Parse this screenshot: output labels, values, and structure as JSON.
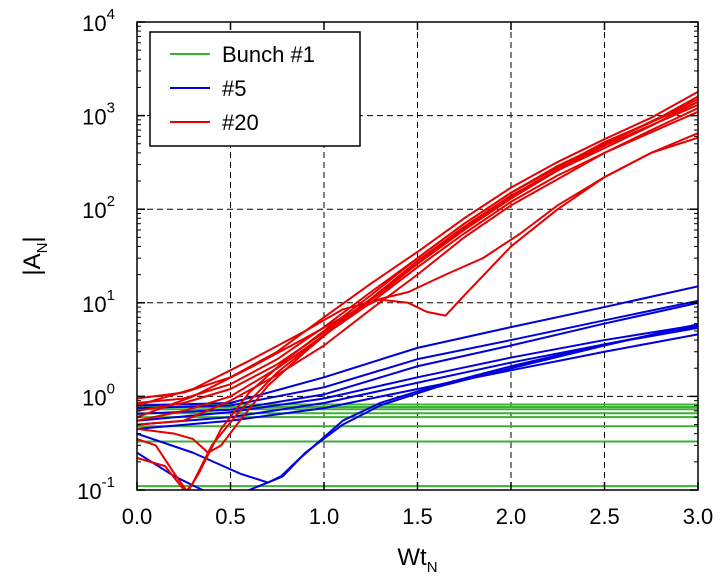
{
  "chart_data": {
    "type": "line",
    "xlabel": {
      "main": "Wt",
      "sub": "N"
    },
    "ylabel": {
      "main": "|A",
      "sub": "N",
      "close": "|"
    },
    "xlim": [
      0.0,
      3.0
    ],
    "ylim": [
      0.1,
      10000
    ],
    "yscale": "log",
    "grid": true,
    "legend_position": "top-left",
    "x_ticks": [
      "0.0",
      "0.5",
      "1.0",
      "1.5",
      "2.0",
      "2.5",
      "3.0"
    ],
    "y_ticks": [
      {
        "base": "10",
        "exp": "-1"
      },
      {
        "base": "10",
        "exp": "0"
      },
      {
        "base": "10",
        "exp": "1"
      },
      {
        "base": "10",
        "exp": "2"
      },
      {
        "base": "10",
        "exp": "3"
      },
      {
        "base": "10",
        "exp": "4"
      }
    ],
    "series": [
      {
        "name": "Bunch #1",
        "color": "#3cb034",
        "lines": [
          [
            [
              0,
              0.82
            ],
            [
              3.0,
              0.82
            ]
          ],
          [
            [
              0,
              0.77
            ],
            [
              3.0,
              0.77
            ]
          ],
          [
            [
              0,
              0.73
            ],
            [
              3.0,
              0.73
            ]
          ],
          [
            [
              0,
              0.66
            ],
            [
              3.0,
              0.66
            ]
          ],
          [
            [
              0,
              0.6
            ],
            [
              3.0,
              0.6
            ]
          ],
          [
            [
              0,
              0.48
            ],
            [
              3.0,
              0.48
            ]
          ],
          [
            [
              0,
              0.33
            ],
            [
              3.0,
              0.33
            ]
          ],
          [
            [
              0,
              0.11
            ],
            [
              3.0,
              0.11
            ]
          ]
        ]
      },
      {
        "name": "#5",
        "color": "#0000dd",
        "lines": [
          [
            [
              0,
              0.8
            ],
            [
              0.5,
              0.85
            ],
            [
              1.0,
              1.6
            ],
            [
              1.5,
              3.3
            ],
            [
              2.0,
              5.5
            ],
            [
              2.5,
              9.0
            ],
            [
              3.0,
              15.0
            ]
          ],
          [
            [
              0,
              0.75
            ],
            [
              0.5,
              0.8
            ],
            [
              1.0,
              1.25
            ],
            [
              1.5,
              2.5
            ],
            [
              2.0,
              4.0
            ],
            [
              2.5,
              6.5
            ],
            [
              3.0,
              10.5
            ]
          ],
          [
            [
              0,
              0.65
            ],
            [
              0.5,
              0.72
            ],
            [
              1.0,
              1.05
            ],
            [
              1.5,
              2.1
            ],
            [
              2.0,
              3.5
            ],
            [
              2.5,
              6.0
            ],
            [
              3.0,
              10.0
            ]
          ],
          [
            [
              0,
              0.55
            ],
            [
              0.5,
              0.68
            ],
            [
              1.0,
              0.95
            ],
            [
              1.5,
              1.6
            ],
            [
              2.0,
              2.6
            ],
            [
              2.5,
              4.0
            ],
            [
              3.0,
              5.8
            ]
          ],
          [
            [
              0,
              0.5
            ],
            [
              0.5,
              0.6
            ],
            [
              1.0,
              0.85
            ],
            [
              1.5,
              1.4
            ],
            [
              2.0,
              2.3
            ],
            [
              2.5,
              3.6
            ],
            [
              3.0,
              5.4
            ]
          ],
          [
            [
              0,
              0.45
            ],
            [
              0.5,
              0.55
            ],
            [
              1.0,
              0.75
            ],
            [
              1.5,
              1.2
            ],
            [
              2.0,
              1.9
            ],
            [
              2.5,
              3.0
            ],
            [
              3.0,
              4.6
            ]
          ],
          [
            [
              0,
              0.4
            ],
            [
              0.3,
              0.25
            ],
            [
              0.55,
              0.15
            ],
            [
              0.7,
              0.12
            ],
            [
              0.78,
              0.14
            ],
            [
              0.9,
              0.25
            ],
            [
              1.1,
              0.5
            ],
            [
              1.3,
              0.8
            ],
            [
              1.6,
              1.25
            ],
            [
              2.0,
              2.0
            ],
            [
              2.5,
              3.5
            ],
            [
              3.0,
              5.9
            ]
          ],
          [
            [
              0,
              0.25
            ],
            [
              0.2,
              0.14
            ],
            [
              0.35,
              0.1
            ]
          ],
          [
            [
              0.6,
              0.1
            ],
            [
              0.7,
              0.12
            ],
            [
              0.77,
              0.14
            ],
            [
              0.85,
              0.2
            ],
            [
              0.95,
              0.3
            ],
            [
              1.1,
              0.55
            ],
            [
              1.3,
              0.85
            ],
            [
              1.6,
              1.3
            ],
            [
              2.0,
              2.1
            ],
            [
              2.5,
              3.6
            ],
            [
              3.0,
              5.6
            ]
          ]
        ]
      },
      {
        "name": "#20",
        "color": "#e60000",
        "lines": [
          [
            [
              0,
              0.95
            ],
            [
              0.25,
              1.1
            ],
            [
              0.5,
              1.6
            ],
            [
              0.75,
              3.0
            ],
            [
              1.0,
              7.0
            ],
            [
              1.25,
              16
            ],
            [
              1.5,
              35
            ],
            [
              1.75,
              80
            ],
            [
              2.0,
              170
            ],
            [
              2.25,
              320
            ],
            [
              2.5,
              560
            ],
            [
              2.75,
              950
            ],
            [
              3.0,
              1800
            ]
          ],
          [
            [
              0,
              0.85
            ],
            [
              0.25,
              0.95
            ],
            [
              0.5,
              1.35
            ],
            [
              0.75,
              2.5
            ],
            [
              1.0,
              5.5
            ],
            [
              1.25,
              13
            ],
            [
              1.5,
              30
            ],
            [
              1.75,
              70
            ],
            [
              2.0,
              150
            ],
            [
              2.25,
              290
            ],
            [
              2.5,
              500
            ],
            [
              2.75,
              850
            ],
            [
              3.0,
              1600
            ]
          ],
          [
            [
              0,
              0.7
            ],
            [
              0.25,
              0.85
            ],
            [
              0.5,
              1.2
            ],
            [
              0.75,
              2.2
            ],
            [
              1.0,
              4.8
            ],
            [
              1.25,
              11
            ],
            [
              1.5,
              26
            ],
            [
              1.75,
              60
            ],
            [
              2.0,
              130
            ],
            [
              2.25,
              260
            ],
            [
              2.5,
              450
            ],
            [
              2.75,
              780
            ],
            [
              3.0,
              1400
            ]
          ],
          [
            [
              0,
              0.55
            ],
            [
              0.25,
              0.7
            ],
            [
              0.5,
              1.0
            ],
            [
              0.75,
              2.0
            ],
            [
              1.0,
              4.5
            ],
            [
              1.25,
              10
            ],
            [
              1.5,
              24
            ],
            [
              1.75,
              55
            ],
            [
              2.0,
              120
            ],
            [
              2.25,
              230
            ],
            [
              2.5,
              400
            ],
            [
              2.75,
              700
            ],
            [
              3.0,
              1200
            ]
          ],
          [
            [
              0,
              0.8
            ],
            [
              0.3,
              1.2
            ],
            [
              0.6,
              2.4
            ],
            [
              0.9,
              5.0
            ],
            [
              1.1,
              8.5
            ],
            [
              1.3,
              10.8
            ],
            [
              1.45,
              10.0
            ],
            [
              1.55,
              8.0
            ],
            [
              1.65,
              7.3
            ],
            [
              1.75,
              12
            ],
            [
              2.0,
              40
            ],
            [
              2.25,
              100
            ],
            [
              2.5,
              220
            ],
            [
              2.75,
              400
            ],
            [
              3.0,
              650
            ]
          ],
          [
            [
              0,
              0.6
            ],
            [
              0.3,
              1.0
            ],
            [
              0.6,
              2.0
            ],
            [
              0.9,
              4.2
            ],
            [
              1.1,
              7.0
            ],
            [
              1.3,
              11
            ],
            [
              1.45,
              13
            ],
            [
              1.65,
              20
            ],
            [
              1.85,
              30
            ],
            [
              2.05,
              55
            ],
            [
              2.25,
              110
            ],
            [
              2.5,
              220
            ],
            [
              2.75,
              400
            ],
            [
              3.0,
              580
            ]
          ],
          [
            [
              0,
              0.22
            ],
            [
              0.15,
              0.18
            ],
            [
              0.22,
              0.12
            ],
            [
              0.26,
              0.095
            ],
            [
              0.3,
              0.12
            ],
            [
              0.4,
              0.3
            ],
            [
              0.55,
              0.7
            ],
            [
              0.75,
              1.8
            ],
            [
              1.0,
              4.5
            ],
            [
              1.25,
              11
            ],
            [
              1.5,
              28
            ],
            [
              1.75,
              65
            ],
            [
              2.0,
              140
            ],
            [
              2.5,
              480
            ],
            [
              3.0,
              1300
            ]
          ],
          [
            [
              0,
              0.35
            ],
            [
              0.1,
              0.3
            ],
            [
              0.2,
              0.15
            ],
            [
              0.27,
              0.095
            ],
            [
              0.33,
              0.15
            ],
            [
              0.45,
              0.45
            ],
            [
              0.6,
              1.1
            ],
            [
              0.8,
              2.5
            ],
            [
              1.0,
              5.0
            ],
            [
              1.25,
              12
            ],
            [
              1.5,
              30
            ],
            [
              1.75,
              70
            ],
            [
              2.0,
              150
            ],
            [
              2.5,
              520
            ],
            [
              3.0,
              1400
            ]
          ],
          [
            [
              0,
              0.45
            ],
            [
              0.2,
              0.4
            ],
            [
              0.3,
              0.35
            ],
            [
              0.38,
              0.25
            ],
            [
              0.45,
              0.3
            ],
            [
              0.55,
              0.55
            ],
            [
              0.7,
              1.3
            ],
            [
              0.9,
              3.0
            ],
            [
              1.1,
              6.5
            ],
            [
              1.35,
              15
            ],
            [
              1.6,
              38
            ],
            [
              1.85,
              85
            ],
            [
              2.1,
              180
            ],
            [
              2.5,
              500
            ],
            [
              3.0,
              1500
            ]
          ],
          [
            [
              0,
              0.5
            ],
            [
              0.25,
              0.55
            ],
            [
              0.5,
              0.9
            ],
            [
              0.75,
              1.7
            ],
            [
              1.0,
              3.5
            ],
            [
              1.25,
              8.5
            ],
            [
              1.5,
              20
            ],
            [
              1.75,
              50
            ],
            [
              2.0,
              110
            ],
            [
              2.5,
              400
            ],
            [
              3.0,
              1100
            ]
          ]
        ]
      }
    ]
  }
}
